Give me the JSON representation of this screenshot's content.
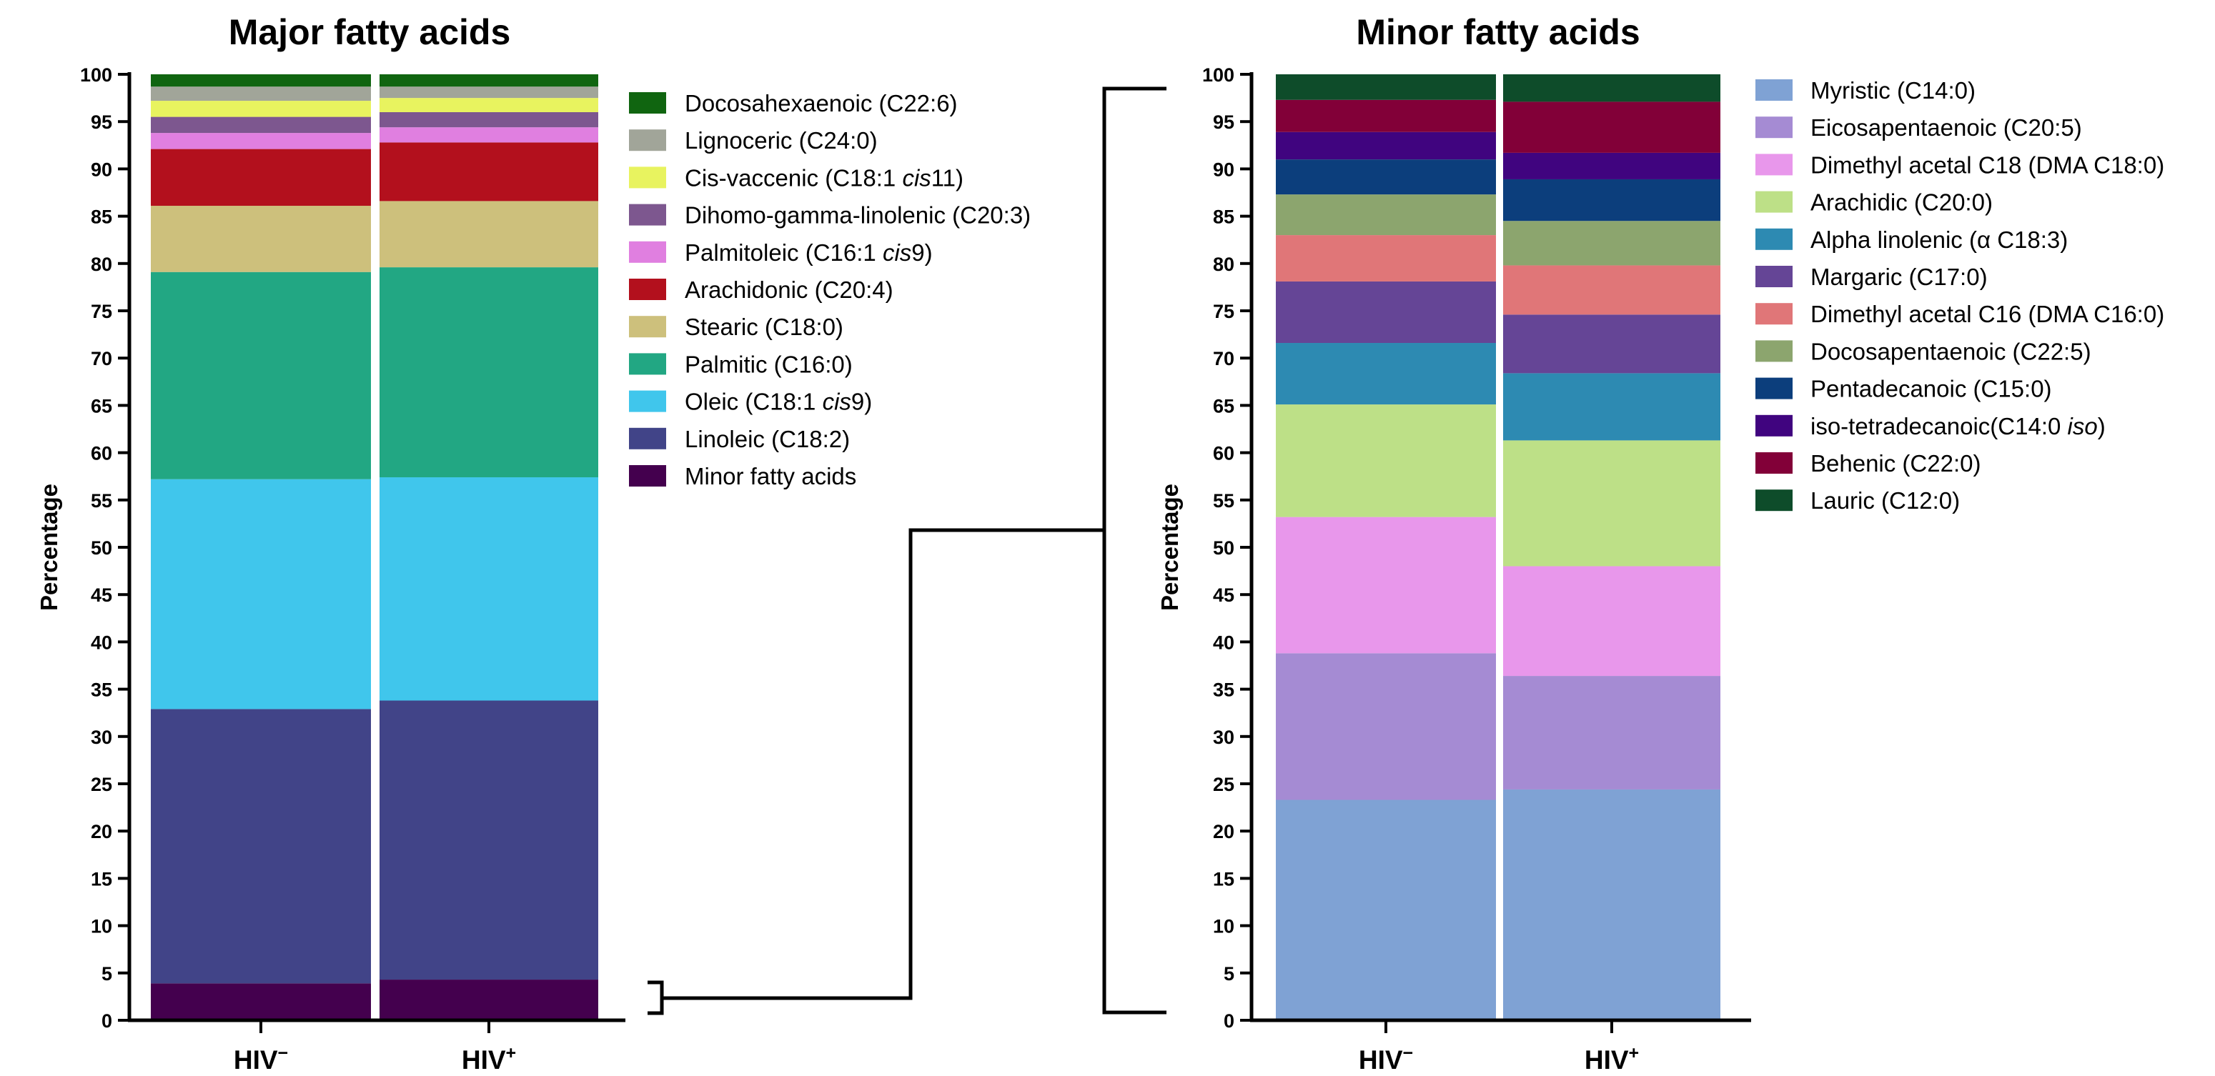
{
  "chart_data": [
    {
      "type": "stacked-bar",
      "title": "Major fatty acids",
      "ylabel": "Percentage",
      "ylim": [
        0,
        100
      ],
      "yticks": [
        0,
        5,
        10,
        15,
        20,
        25,
        30,
        35,
        40,
        45,
        50,
        55,
        60,
        65,
        70,
        75,
        80,
        85,
        90,
        95,
        100
      ],
      "categories": [
        {
          "base": "HIV",
          "sup": "−"
        },
        {
          "base": "HIV",
          "sup": "+"
        }
      ],
      "series": [
        {
          "name": "Minor fatty acids",
          "color": "#44004e",
          "values": [
            3.9,
            4.3
          ]
        },
        {
          "name": "Linoleic (C18:2)",
          "color": "#414488",
          "values": [
            29.0,
            29.5
          ]
        },
        {
          "name": "Oleic (C18:1 |cis|9)",
          "color": "#40c6ec",
          "values": [
            24.3,
            23.6
          ]
        },
        {
          "name": "Palmitic (C16:0)",
          "color": "#22a783",
          "values": [
            21.9,
            22.2
          ]
        },
        {
          "name": "Stearic (C18:0)",
          "color": "#cdc07c",
          "values": [
            7.0,
            7.0
          ]
        },
        {
          "name": "Arachidonic (C20:4)",
          "color": "#b3101d",
          "values": [
            6.0,
            6.2
          ]
        },
        {
          "name": "Palmitoleic (C16:1 |cis|9)",
          "color": "#e07fe0",
          "values": [
            1.7,
            1.6
          ]
        },
        {
          "name": "Dihomo-gamma-linolenic (C20:3)",
          "color": "#7d578f",
          "values": [
            1.7,
            1.6
          ]
        },
        {
          "name": "Cis-vaccenic (C18:1 |cis|11)",
          "color": "#e8f35f",
          "values": [
            1.7,
            1.5
          ]
        },
        {
          "name": "Lignoceric (C24:0)",
          "color": "#a1a599",
          "values": [
            1.5,
            1.2
          ]
        },
        {
          "name": "Docosahexaenoic (C22:6)",
          "color": "#106510",
          "values": [
            1.3,
            1.3
          ]
        }
      ],
      "legend": "right"
    },
    {
      "type": "stacked-bar",
      "title": "Minor fatty acids",
      "ylabel": "Percentage",
      "ylim": [
        0,
        100
      ],
      "yticks": [
        0,
        5,
        10,
        15,
        20,
        25,
        30,
        35,
        40,
        45,
        50,
        55,
        60,
        65,
        70,
        75,
        80,
        85,
        90,
        95,
        100
      ],
      "categories": [
        {
          "base": "HIV",
          "sup": "−"
        },
        {
          "base": "HIV",
          "sup": "+"
        }
      ],
      "series": [
        {
          "name": "Myristic (C14:0)",
          "color": "#7fa2d4",
          "values": [
            23.3,
            24.4
          ]
        },
        {
          "name": "Eicosapentaenoic (C20:5)",
          "color": "#a58bd3",
          "values": [
            15.5,
            12.0
          ]
        },
        {
          "name": "Dimethyl acetal C18 (DMA C18:0)",
          "color": "#e897eb",
          "values": [
            14.4,
            11.6
          ]
        },
        {
          "name": "Arachidic (C20:0)",
          "color": "#bde087",
          "values": [
            11.9,
            13.3
          ]
        },
        {
          "name": "Alpha linolenic (α C18:3)",
          "color": "#2d8ab2",
          "values": [
            6.5,
            7.1
          ]
        },
        {
          "name": "Margaric (C17:0)",
          "color": "#654596",
          "values": [
            6.5,
            6.2
          ]
        },
        {
          "name": "Dimethyl acetal C16 (DMA C16:0)",
          "color": "#e07678",
          "values": [
            4.9,
            5.2
          ]
        },
        {
          "name": "Docosapentaenoic (C22:5)",
          "color": "#8ca56e",
          "values": [
            4.3,
            4.7
          ]
        },
        {
          "name": "Pentadecanoic (C15:0)",
          "color": "#0c3e7c",
          "values": [
            3.7,
            4.4
          ]
        },
        {
          "name": "iso-tetradecanoic(C14:0 |iso|)",
          "color": "#40047f",
          "values": [
            2.9,
            2.8
          ]
        },
        {
          "name": "Behenic (C22:0)",
          "color": "#820038",
          "values": [
            3.4,
            5.4
          ]
        },
        {
          "name": "Lauric (C12:0)",
          "color": "#0e4c2a",
          "values": [
            2.7,
            2.9
          ]
        }
      ],
      "legend": "right"
    }
  ]
}
